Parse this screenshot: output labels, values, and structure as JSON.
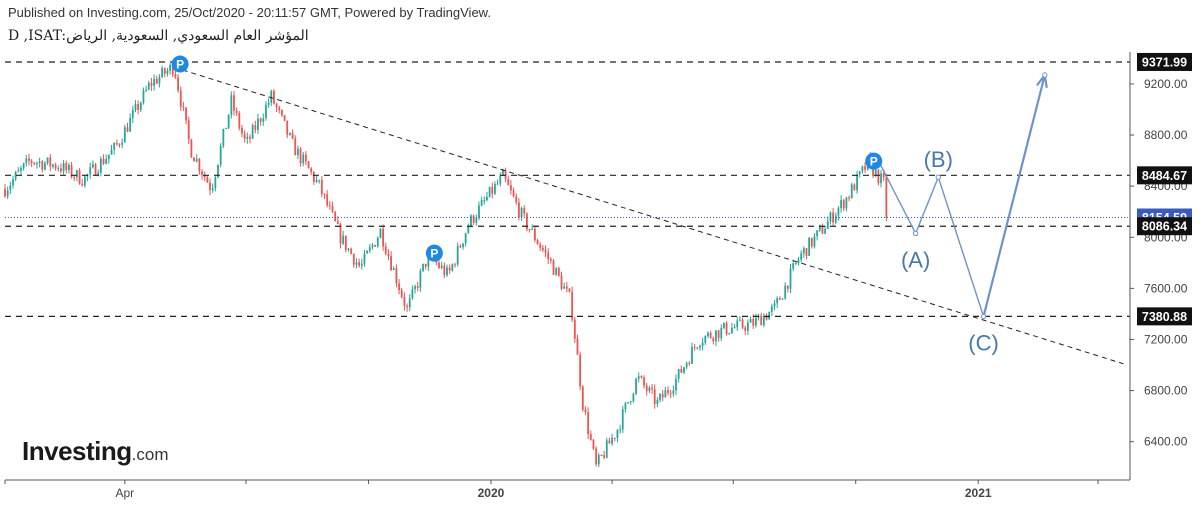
{
  "header": {
    "published": "Published on Investing.com, 25/Oct/2020 - 20:11:57 GMT, Powered by TradingView.",
    "symbol": "D ,ISAT:المؤشر العام السعودي, السعودية, الرياض"
  },
  "logo": {
    "brand": "Investing",
    "domain": ".com"
  },
  "colors": {
    "up": "#26a69a",
    "down": "#ef5350",
    "wave": "#6d93c7",
    "pivot": "#1e88e5",
    "dashed": "#222222",
    "current_price_line": "#3a5bbf"
  },
  "chart_data": {
    "type": "candlestick",
    "y_axis_ticks": [
      "9200.00",
      "8800.00",
      "8400.00",
      "8000.00",
      "7600.00",
      "7200.00",
      "6800.00",
      "6400.00"
    ],
    "x_axis_ticks": [
      "Apr",
      "2020",
      "2021"
    ],
    "ylim": [
      6100,
      9450
    ],
    "levels": [
      {
        "value": 9371.99,
        "label": "9371.99",
        "style": "dashed"
      },
      {
        "value": 8484.67,
        "label": "8484.67",
        "style": "dashed"
      },
      {
        "value": 8154.59,
        "label": "8154.59",
        "style": "current"
      },
      {
        "value": 8086.34,
        "label": "8086.34",
        "style": "dashed"
      },
      {
        "value": 7380.88,
        "label": "7380.88",
        "style": "dashed"
      }
    ],
    "price_path": [
      {
        "date": "2019-01-01",
        "value": 8380
      },
      {
        "date": "2019-01-20",
        "value": 8600
      },
      {
        "date": "2019-02-10",
        "value": 8560
      },
      {
        "date": "2019-03-01",
        "value": 8450
      },
      {
        "date": "2019-03-25",
        "value": 8700
      },
      {
        "date": "2019-04-20",
        "value": 9200
      },
      {
        "date": "2019-05-08",
        "value": 9340
      },
      {
        "date": "2019-05-20",
        "value": 8700
      },
      {
        "date": "2019-06-05",
        "value": 8380
      },
      {
        "date": "2019-06-20",
        "value": 9060
      },
      {
        "date": "2019-07-01",
        "value": 8720
      },
      {
        "date": "2019-07-20",
        "value": 9100
      },
      {
        "date": "2019-08-05",
        "value": 8720
      },
      {
        "date": "2019-08-25",
        "value": 8400
      },
      {
        "date": "2019-09-10",
        "value": 8000
      },
      {
        "date": "2019-09-25",
        "value": 7760
      },
      {
        "date": "2019-10-10",
        "value": 8050
      },
      {
        "date": "2019-10-30",
        "value": 7430
      },
      {
        "date": "2019-11-15",
        "value": 7860
      },
      {
        "date": "2019-11-30",
        "value": 7700
      },
      {
        "date": "2019-12-15",
        "value": 8100
      },
      {
        "date": "2020-01-01",
        "value": 8350
      },
      {
        "date": "2020-01-10",
        "value": 8470
      },
      {
        "date": "2020-01-25",
        "value": 8150
      },
      {
        "date": "2020-02-15",
        "value": 7800
      },
      {
        "date": "2020-03-01",
        "value": 7500
      },
      {
        "date": "2020-03-10",
        "value": 6700
      },
      {
        "date": "2020-03-20",
        "value": 6200
      },
      {
        "date": "2020-04-05",
        "value": 6500
      },
      {
        "date": "2020-04-20",
        "value": 6900
      },
      {
        "date": "2020-05-05",
        "value": 6700
      },
      {
        "date": "2020-05-20",
        "value": 6900
      },
      {
        "date": "2020-06-05",
        "value": 7200
      },
      {
        "date": "2020-06-25",
        "value": 7280
      },
      {
        "date": "2020-07-15",
        "value": 7320
      },
      {
        "date": "2020-08-01",
        "value": 7440
      },
      {
        "date": "2020-08-20",
        "value": 7850
      },
      {
        "date": "2020-09-05",
        "value": 8050
      },
      {
        "date": "2020-09-25",
        "value": 8320
      },
      {
        "date": "2020-10-10",
        "value": 8580
      },
      {
        "date": "2020-10-22",
        "value": 8420
      },
      {
        "date": "2020-10-25",
        "value": 8154.59
      }
    ],
    "pivots": [
      {
        "label": "P",
        "date": "2019-05-08",
        "value": 9340
      },
      {
        "label": "P",
        "date": "2019-11-15",
        "value": 7860
      },
      {
        "label": "P",
        "date": "2020-10-10",
        "value": 8580
      }
    ],
    "trendline": [
      {
        "date": "2019-05-08",
        "value": 9330
      },
      {
        "date": "2021-04-20",
        "value": 7010
      }
    ],
    "wave_projection": [
      {
        "label": "",
        "date": "2020-10-18",
        "value": 8600
      },
      {
        "label": "(A)",
        "date": "2020-11-15",
        "value": 8030
      },
      {
        "label": "(B)",
        "date": "2020-12-02",
        "value": 8470
      },
      {
        "label": "(C)",
        "date": "2021-01-05",
        "value": 7380
      },
      {
        "label": "",
        "date": "2021-02-20",
        "value": 9270
      }
    ]
  }
}
